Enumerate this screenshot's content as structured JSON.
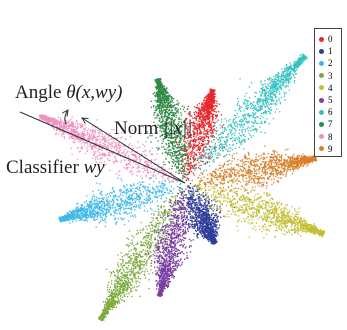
{
  "annotations": {
    "angle_prefix": "Angle ",
    "angle_symbol": "θ",
    "angle_args": "(x,wy)",
    "norm_prefix": "Norm ",
    "norm_symbol": "||x||",
    "classifier_prefix": "Classifier ",
    "classifier_symbol": "wy"
  },
  "legend": {
    "items": [
      {
        "label": "0",
        "color": "#e8262c"
      },
      {
        "label": "1",
        "color": "#2e3d97"
      },
      {
        "label": "2",
        "color": "#3fb8e6"
      },
      {
        "label": "3",
        "color": "#7daa3d"
      },
      {
        "label": "4",
        "color": "#c2bf34"
      },
      {
        "label": "5",
        "color": "#7a3fa0"
      },
      {
        "label": "6",
        "color": "#35c2c0"
      },
      {
        "label": "7",
        "color": "#2e8a45"
      },
      {
        "label": "8",
        "color": "#ee92c0"
      },
      {
        "label": "9",
        "color": "#d87f2c"
      }
    ]
  },
  "clusters": [
    {
      "class": "0",
      "color": "#e8262c",
      "angle_deg": 74,
      "length": 0.56
    },
    {
      "class": "1",
      "color": "#2e3d97",
      "angle_deg": -64,
      "length": 0.38
    },
    {
      "class": "2",
      "color": "#3fb8e6",
      "angle_deg": -164,
      "length": 0.75
    },
    {
      "class": "3",
      "color": "#7daa3d",
      "angle_deg": -122,
      "length": 0.92
    },
    {
      "class": "4",
      "color": "#c2bf34",
      "angle_deg": -20,
      "length": 0.84
    },
    {
      "class": "5",
      "color": "#7a3fa0",
      "angle_deg": -103,
      "length": 0.66
    },
    {
      "class": "6",
      "color": "#35c2c0",
      "angle_deg": 47,
      "length": 1.0
    },
    {
      "class": "7",
      "color": "#2e8a45",
      "angle_deg": 105,
      "length": 0.62
    },
    {
      "class": "8",
      "color": "#ee92c0",
      "angle_deg": 155,
      "length": 0.92
    },
    {
      "class": "9",
      "color": "#d87f2c",
      "angle_deg": 11,
      "length": 0.76
    }
  ]
}
